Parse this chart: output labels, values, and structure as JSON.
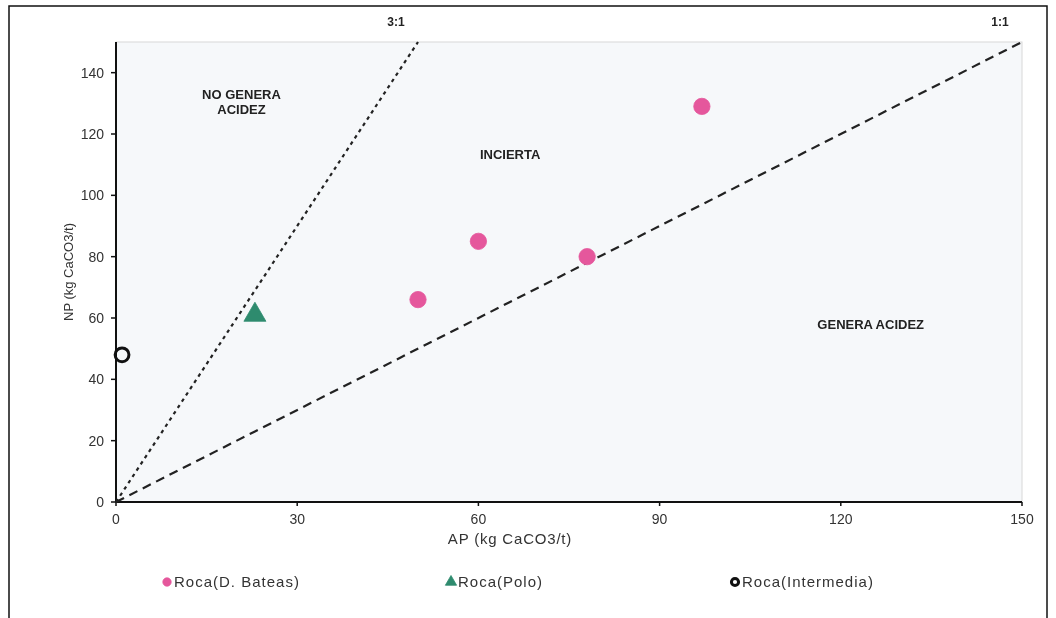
{
  "chart_data": {
    "type": "scatter",
    "xlabel": "AP (kg CaCO3/t)",
    "ylabel": "NP (kg CaCO3/t)",
    "xlim": [
      0,
      150
    ],
    "ylim": [
      0,
      150
    ],
    "xticks": [
      0,
      30,
      60,
      90,
      120,
      150
    ],
    "yticks": [
      0,
      20,
      40,
      60,
      80,
      100,
      120,
      140
    ],
    "legend": "bottom",
    "series": [
      {
        "name": "Roca(D. Bateas)",
        "color": "#e5579c",
        "marker": "circle",
        "x": [
          50,
          60,
          78,
          97
        ],
        "values": [
          66,
          85,
          80,
          129
        ]
      },
      {
        "name": "Roca(Polo)",
        "color": "#2e8b6e",
        "marker": "triangle",
        "x": [
          23
        ],
        "values": [
          61
        ]
      },
      {
        "name": "Roca(Intermedia)",
        "color": "#111111",
        "marker": "circle",
        "x": [
          1
        ],
        "values": [
          48
        ]
      },
      {
        "name": "3:1",
        "type": "line",
        "color": "#222222",
        "line_style": "dotted",
        "marker": "none",
        "x": [
          0,
          50
        ],
        "values": [
          0,
          150
        ]
      },
      {
        "name": "1:1",
        "type": "line",
        "color": "#222222",
        "line_style": "dashed",
        "marker": "none",
        "x": [
          0,
          150
        ],
        "values": [
          0,
          150
        ]
      }
    ],
    "annotations": [
      "NO GENERA\nACIDEZ",
      "INCIERTA",
      "GENERA ACIDEZ"
    ]
  }
}
